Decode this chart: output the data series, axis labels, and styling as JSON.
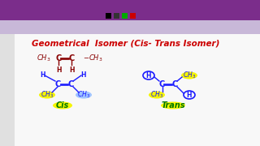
{
  "bg_color": "#e8e8e8",
  "toolbar_purple": "#7B2D8B",
  "toolbar_light": "#c8b8d8",
  "main_bg": "#f8f8f8",
  "sidebar_bg": "#e0e0e0",
  "title_text": "Geometrical  Isomer (Cis- Trans Isomer)",
  "title_color": "#cc0000",
  "title_fontsize": 7.5,
  "cis_label": "Cis",
  "trans_label": "Trans",
  "highlight_yellow": "#f5f500",
  "highlight_blue": "#a0c4ff",
  "molecule_color": "#1a1aff",
  "top_molecule_color": "#880000",
  "label_color": "#007700",
  "toolbar_icons": [
    "#000000",
    "#333333",
    "#00aa00",
    "#cc0000"
  ]
}
